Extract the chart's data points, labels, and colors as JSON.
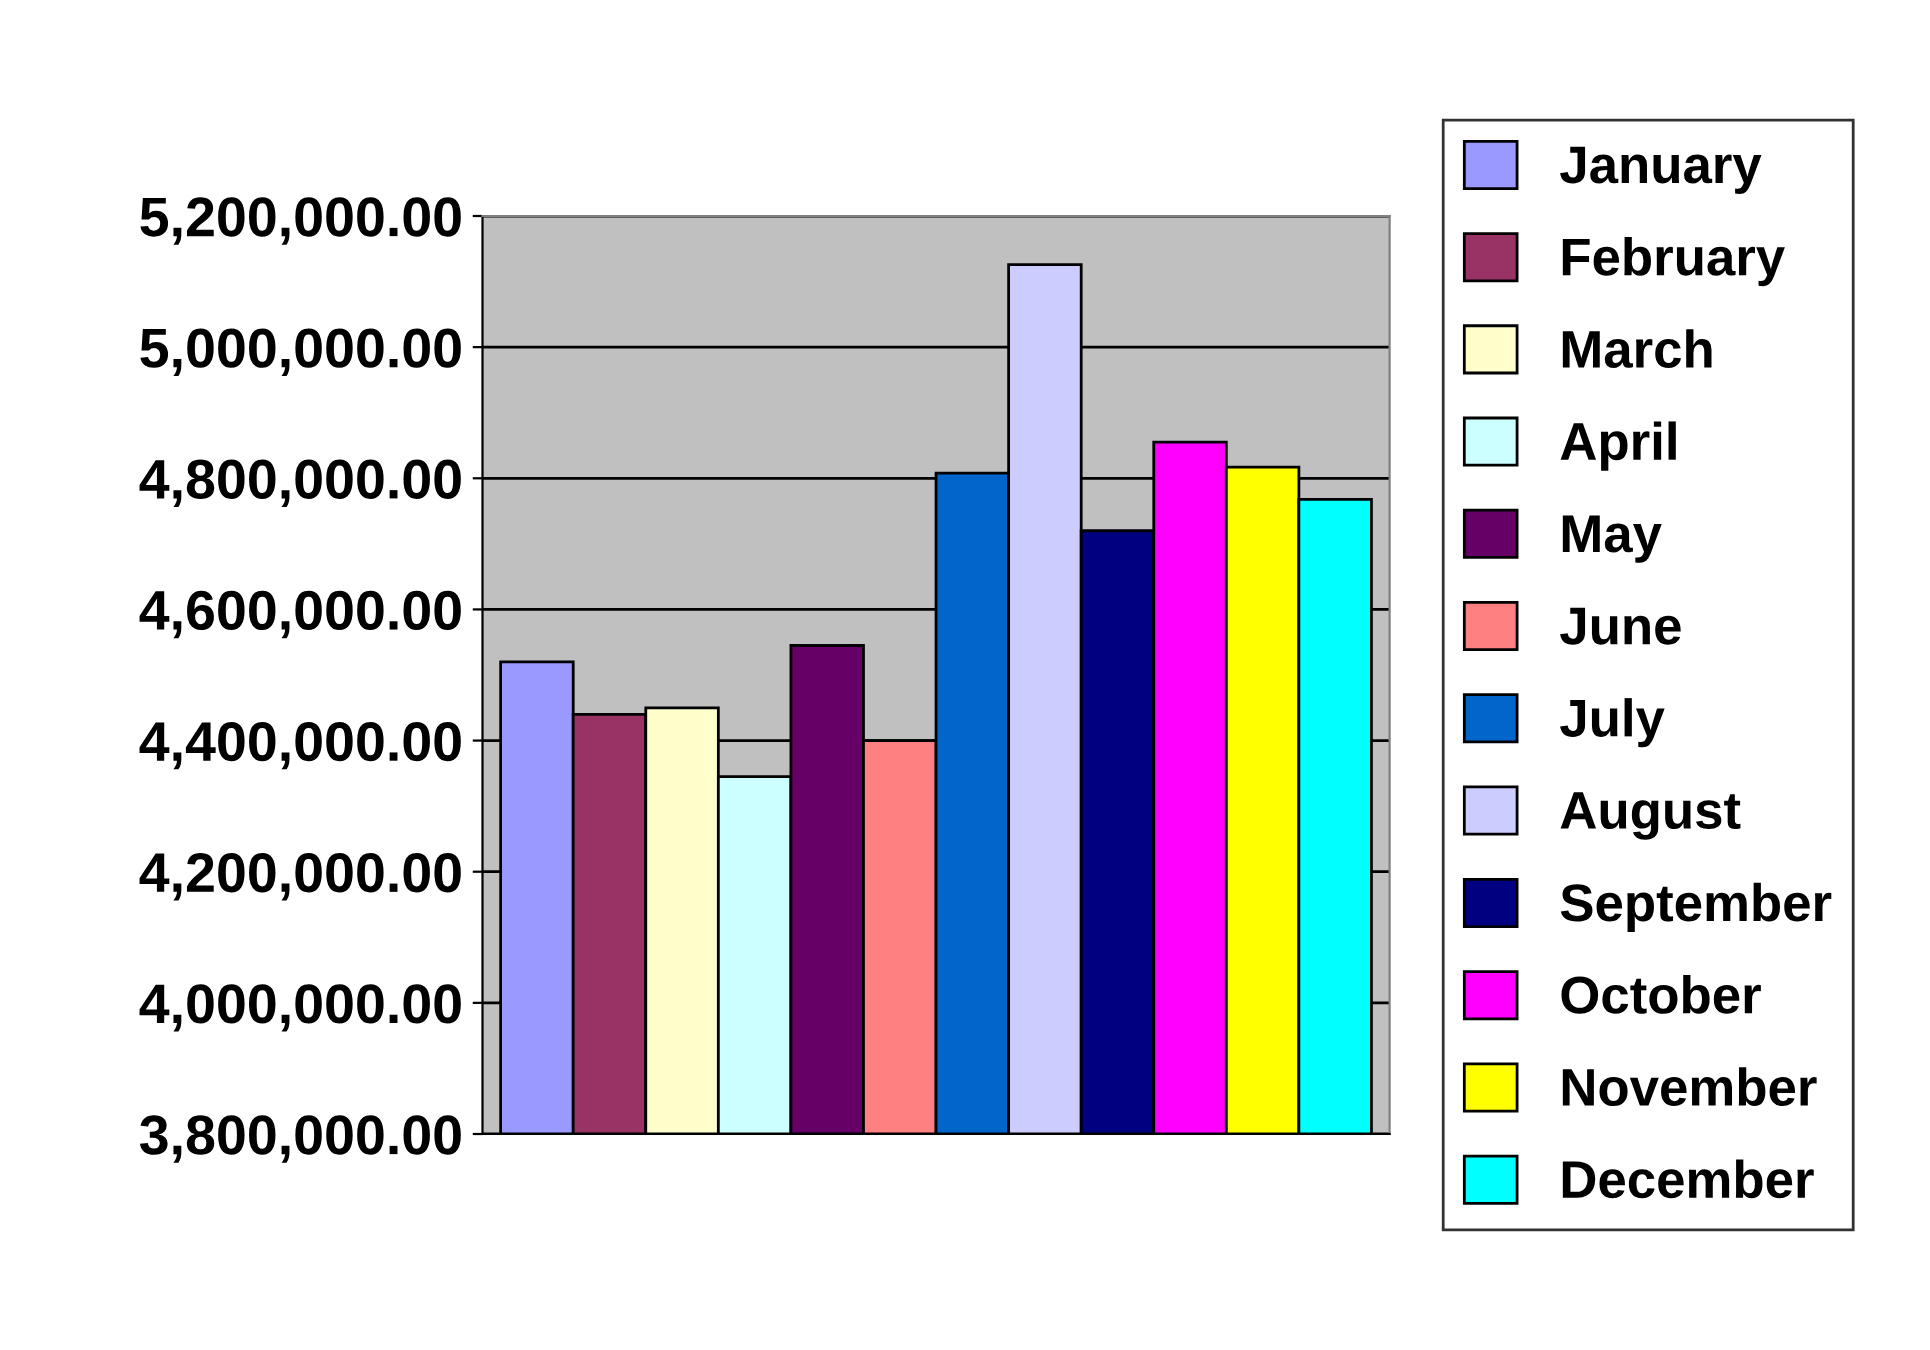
{
  "chart_data": {
    "type": "bar",
    "categories": [
      null
    ],
    "series": [
      {
        "name": "January",
        "color": "#9999ff",
        "values": [
          4520000
        ]
      },
      {
        "name": "February",
        "color": "#993366",
        "values": [
          4440000
        ]
      },
      {
        "name": "March",
        "color": "#ffffcc",
        "values": [
          4450000
        ]
      },
      {
        "name": "April",
        "color": "#ccffff",
        "values": [
          4345000
        ]
      },
      {
        "name": "May",
        "color": "#660066",
        "values": [
          4545000
        ]
      },
      {
        "name": "June",
        "color": "#ff8080",
        "values": [
          4400000
        ]
      },
      {
        "name": "July",
        "color": "#0066cc",
        "values": [
          4808000
        ]
      },
      {
        "name": "August",
        "color": "#ccccff",
        "values": [
          5126000
        ]
      },
      {
        "name": "September",
        "color": "#000080",
        "values": [
          4720000
        ]
      },
      {
        "name": "October",
        "color": "#ff00ff",
        "values": [
          4855000
        ]
      },
      {
        "name": "November",
        "color": "#ffff00",
        "values": [
          4817000
        ]
      },
      {
        "name": "December",
        "color": "#00ffff",
        "values": [
          4768000
        ]
      }
    ],
    "ylim": [
      3800000,
      5200000
    ],
    "yticks": [
      {
        "value": 3800000,
        "label": "3,800,000.00"
      },
      {
        "value": 4000000,
        "label": "4,000,000.00"
      },
      {
        "value": 4200000,
        "label": "4,200,000.00"
      },
      {
        "value": 4400000,
        "label": "4,400,000.00"
      },
      {
        "value": 4600000,
        "label": "4,600,000.00"
      },
      {
        "value": 4800000,
        "label": "4,800,000.00"
      },
      {
        "value": 5000000,
        "label": "5,000,000.00"
      },
      {
        "value": 5200000,
        "label": "5,200,000.00"
      }
    ],
    "grid": "y",
    "legend": "right",
    "tick_labels": "y"
  }
}
